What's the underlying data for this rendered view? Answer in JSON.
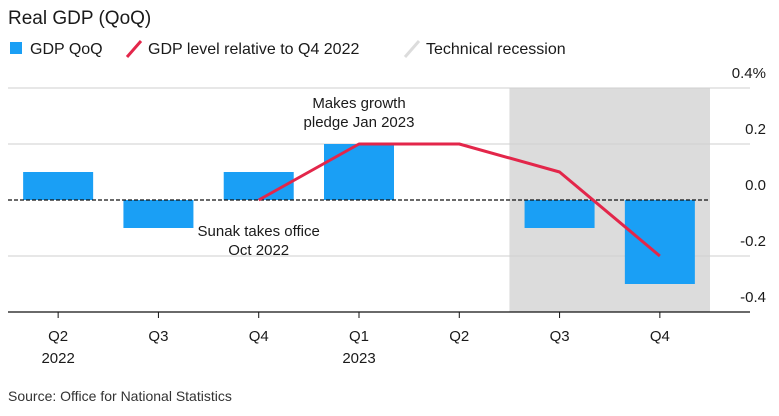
{
  "chart_data": {
    "type": "bar",
    "title": "Real GDP (QoQ)",
    "categories": [
      {
        "quarter": "Q2",
        "year": "2022"
      },
      {
        "quarter": "Q3",
        "year": ""
      },
      {
        "quarter": "Q4",
        "year": ""
      },
      {
        "quarter": "Q1",
        "year": "2023"
      },
      {
        "quarter": "Q2",
        "year": ""
      },
      {
        "quarter": "Q3",
        "year": ""
      },
      {
        "quarter": "Q4",
        "year": ""
      }
    ],
    "series": [
      {
        "name": "GDP QoQ",
        "kind": "bar",
        "color": "#1a9ff5",
        "values": [
          0.1,
          -0.1,
          0.1,
          0.2,
          null,
          -0.1,
          -0.3
        ]
      },
      {
        "name": "GDP level relative to Q4 2022",
        "kind": "line",
        "color": "#e3264a",
        "values": [
          null,
          null,
          0.0,
          0.2,
          0.2,
          0.1,
          -0.2
        ]
      }
    ],
    "shading": {
      "name": "Technical recession",
      "color": "#dcdcdc",
      "from_index": 5,
      "to_index": 6
    },
    "y_axis": {
      "position": "right",
      "ylim": [
        -0.4,
        0.4
      ],
      "ticks": [
        {
          "value": 0.4,
          "label": "0.4%"
        },
        {
          "value": 0.2,
          "label": "0.2"
        },
        {
          "value": 0.0,
          "label": "0.0"
        },
        {
          "value": -0.2,
          "label": "-0.2"
        },
        {
          "value": -0.4,
          "label": "-0.4"
        }
      ]
    },
    "annotations": [
      {
        "lines": [
          "Makes growth",
          "pledge Jan 2023"
        ],
        "category_index": 3
      },
      {
        "lines": [
          "Sunak takes office",
          "Oct 2022"
        ],
        "category_index": 2
      }
    ],
    "source": "Source: Office for National Statistics"
  }
}
